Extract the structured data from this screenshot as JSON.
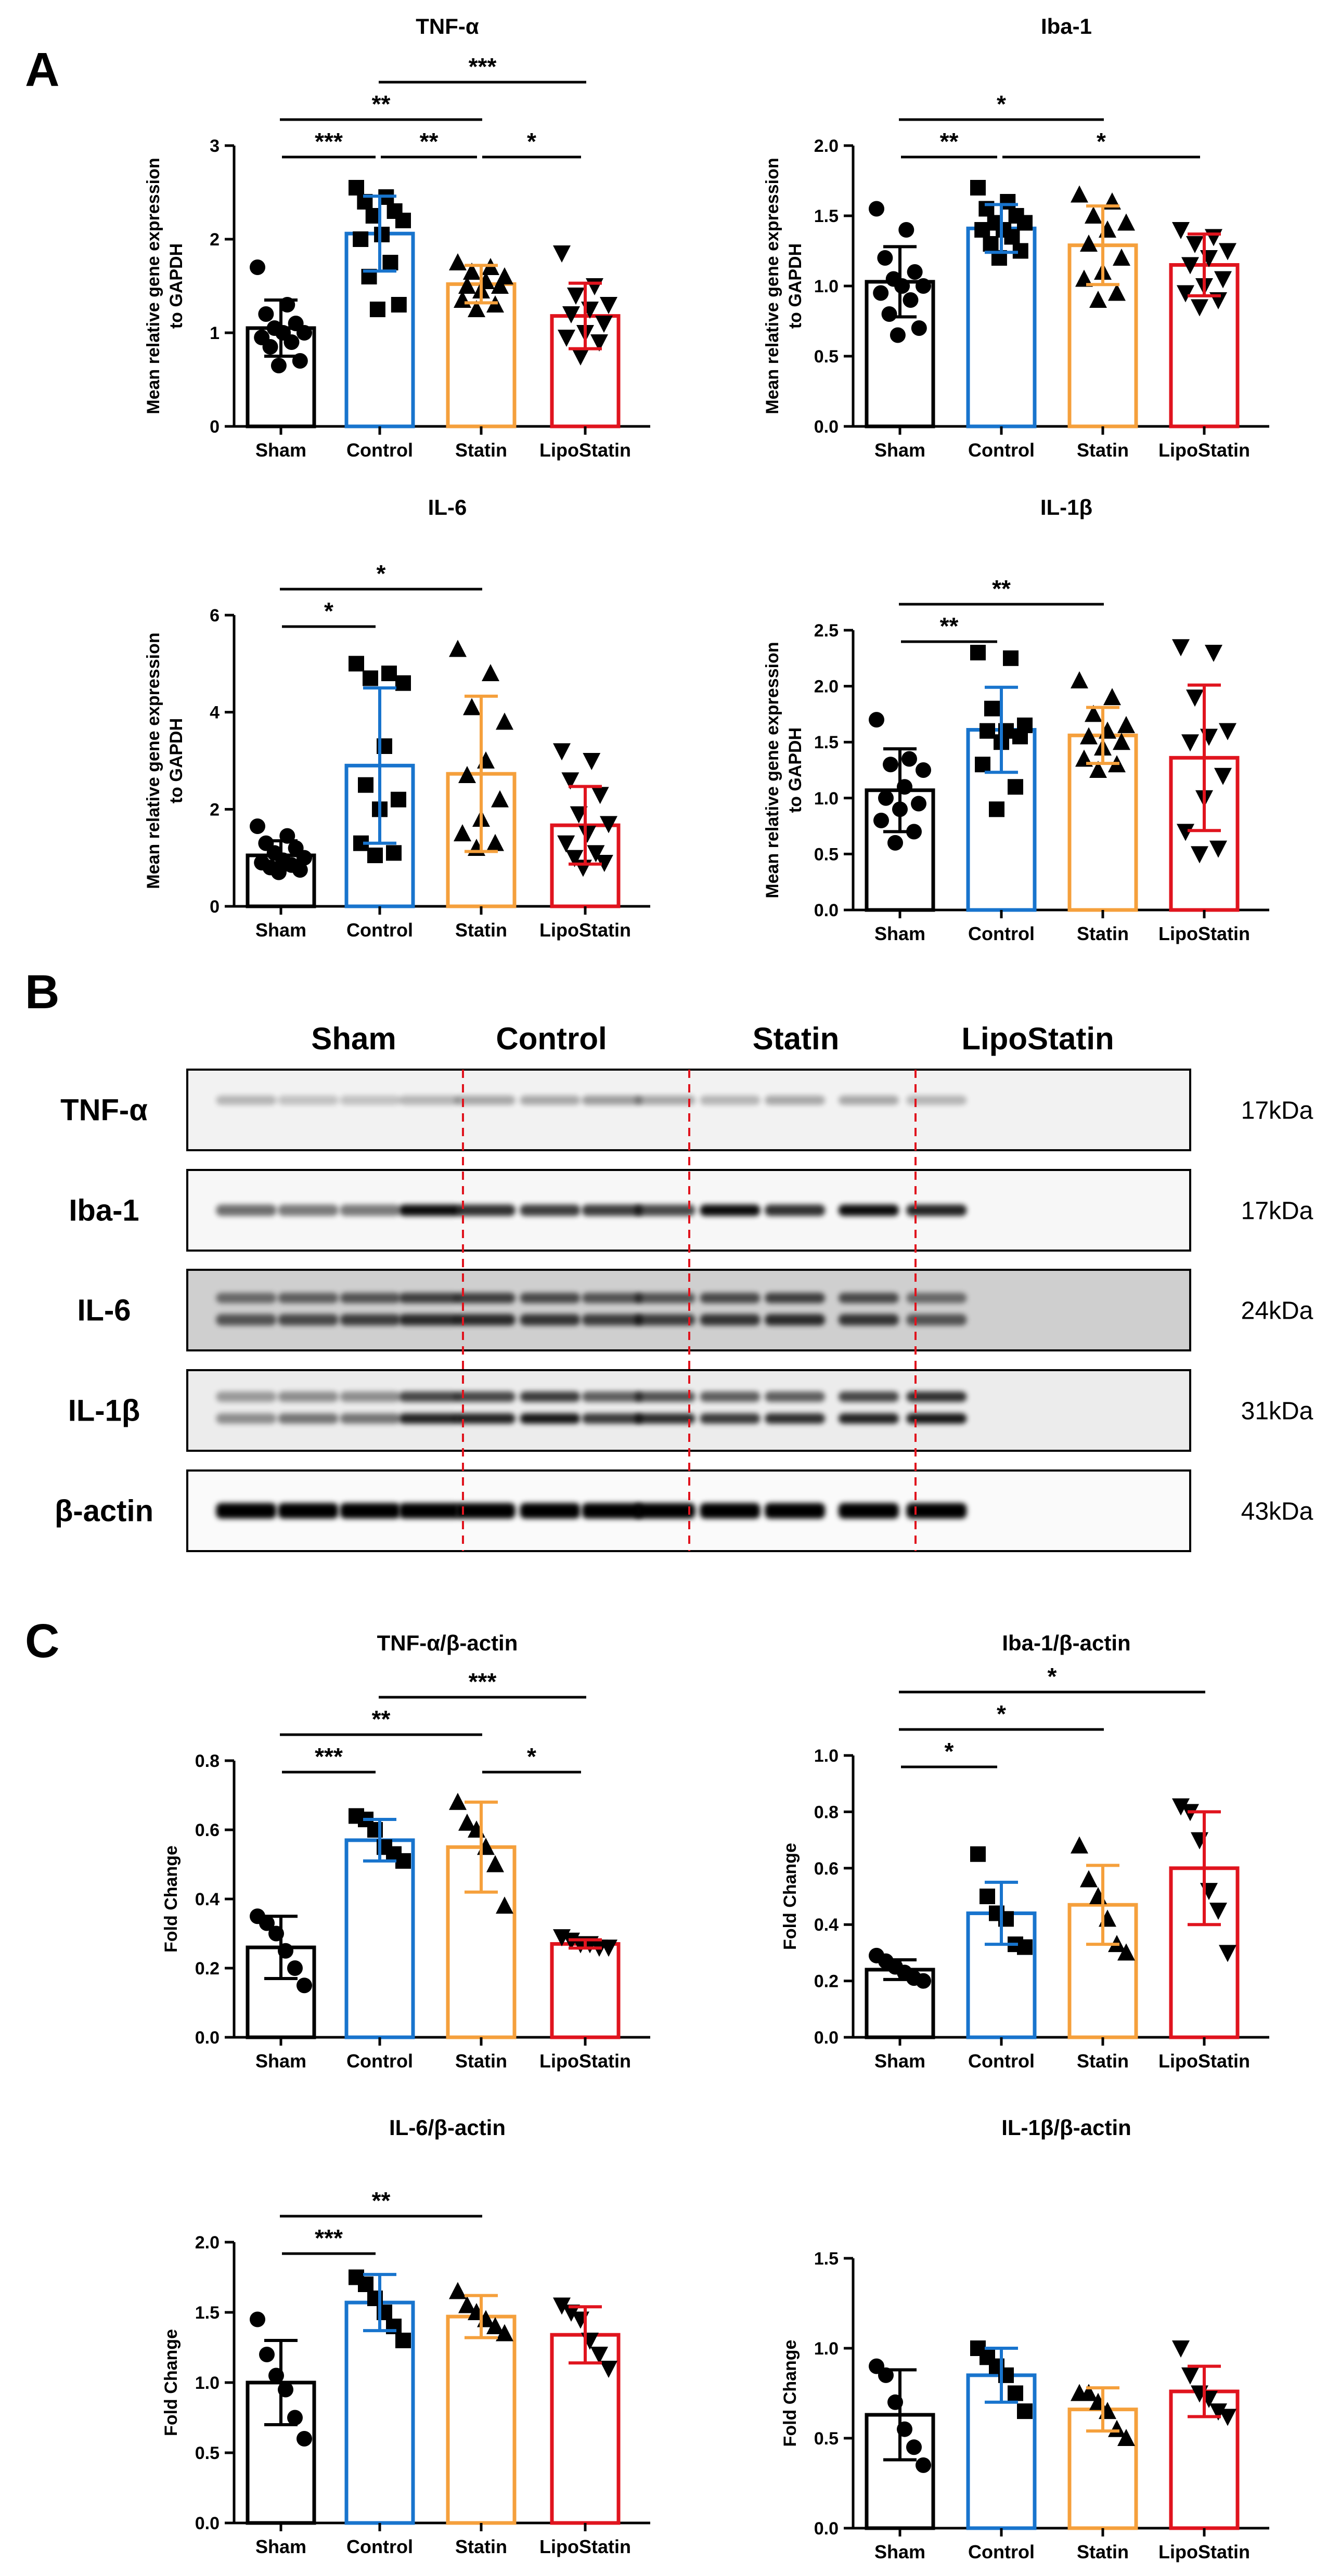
{
  "panels": {
    "a": "A",
    "b": "B",
    "c": "C"
  },
  "colors": {
    "Sham": "#000000",
    "Control": "#1874cd",
    "Statin": "#f5a03c",
    "LipoStatin": "#e0141e",
    "divider": "#e0141e"
  },
  "blot": {
    "groups": [
      "Sham",
      "Control",
      "Statin",
      "LipoStatin"
    ],
    "rows": [
      {
        "label": "TNF-α",
        "kda": "17kDa"
      },
      {
        "label": "Iba-1",
        "kda": "17kDa"
      },
      {
        "label": "IL-6",
        "kda": "24kDa"
      },
      {
        "label": "IL-1β",
        "kda": "31kDa"
      },
      {
        "label": "β-actin",
        "kda": "43kDa"
      }
    ]
  },
  "chart_data": [
    {
      "type": "bar",
      "panel": "A",
      "title": "TNF-α",
      "ylabel": [
        "Mean relative gene expression",
        "to GAPDH"
      ],
      "categories": [
        "Sham",
        "Control",
        "Statin",
        "LipoStatin"
      ],
      "ylim": [
        0,
        3
      ],
      "yticks": [
        "0",
        "1",
        "2",
        "3"
      ],
      "values": [
        1.05,
        2.06,
        1.52,
        1.18
      ],
      "errors": [
        0.3,
        0.4,
        0.2,
        0.35
      ],
      "markers": [
        "circle",
        "square",
        "triangle",
        "triangle-down"
      ],
      "points": [
        [
          1.7,
          1.3,
          1.2,
          1.1,
          1.05,
          1.0,
          1.0,
          0.95,
          0.9,
          0.85,
          0.7,
          0.65
        ],
        [
          2.55,
          2.45,
          2.4,
          2.3,
          2.25,
          2.2,
          2.05,
          2.0,
          1.75,
          1.6,
          1.3,
          1.25
        ],
        [
          1.75,
          1.7,
          1.65,
          1.6,
          1.55,
          1.5,
          1.5,
          1.45,
          1.35,
          1.3,
          1.25
        ],
        [
          1.85,
          1.5,
          1.4,
          1.3,
          1.25,
          1.2,
          1.1,
          1.0,
          0.95,
          0.9,
          0.75
        ]
      ],
      "comparisons": [
        {
          "from": 0,
          "to": 1,
          "label": "***",
          "level": 0
        },
        {
          "from": 1,
          "to": 2,
          "label": "**",
          "level": 0
        },
        {
          "from": 2,
          "to": 3,
          "label": "*",
          "level": 0
        },
        {
          "from": 0,
          "to": 2,
          "label": "**",
          "level": 1
        },
        {
          "from": 1,
          "to": 3,
          "label": "***",
          "level": 2
        }
      ]
    },
    {
      "type": "bar",
      "panel": "A",
      "title": "Iba-1",
      "ylabel": [
        "Mean relative gene expression",
        "to GAPDH"
      ],
      "categories": [
        "Sham",
        "Control",
        "Statin",
        "LipoStatin"
      ],
      "ylim": [
        0,
        2
      ],
      "yticks": [
        "0.0",
        "0.5",
        "1.0",
        "1.5",
        "2.0"
      ],
      "values": [
        1.03,
        1.41,
        1.29,
        1.15
      ],
      "errors": [
        0.25,
        0.17,
        0.28,
        0.22
      ],
      "markers": [
        "circle",
        "square",
        "triangle",
        "triangle-down"
      ],
      "points": [
        [
          1.55,
          1.4,
          1.2,
          1.1,
          1.05,
          1.0,
          1.0,
          0.95,
          0.9,
          0.8,
          0.7,
          0.65
        ],
        [
          1.7,
          1.6,
          1.55,
          1.5,
          1.45,
          1.45,
          1.4,
          1.4,
          1.35,
          1.3,
          1.25,
          1.2
        ],
        [
          1.65,
          1.6,
          1.5,
          1.45,
          1.4,
          1.3,
          1.2,
          1.1,
          1.05,
          0.95,
          0.9
        ],
        [
          1.4,
          1.35,
          1.3,
          1.25,
          1.2,
          1.15,
          1.05,
          1.0,
          0.95,
          0.9,
          0.85
        ]
      ],
      "comparisons": [
        {
          "from": 0,
          "to": 1,
          "label": "**",
          "level": 0
        },
        {
          "from": 1,
          "to": 3,
          "label": "*",
          "level": 0
        },
        {
          "from": 0,
          "to": 2,
          "label": "*",
          "level": 1
        }
      ]
    },
    {
      "type": "bar",
      "panel": "A",
      "title": "IL-6",
      "ylabel": [
        "Mean relative gene expression",
        "to GAPDH"
      ],
      "categories": [
        "Sham",
        "Control",
        "Statin",
        "LipoStatin"
      ],
      "ylim": [
        0,
        6
      ],
      "yticks": [
        "0",
        "2",
        "4",
        "6"
      ],
      "values": [
        1.05,
        2.9,
        2.73,
        1.67
      ],
      "errors": [
        0.3,
        1.6,
        1.6,
        0.8
      ],
      "markers": [
        "circle",
        "square",
        "triangle",
        "triangle-down"
      ],
      "points": [
        [
          1.65,
          1.45,
          1.3,
          1.2,
          1.1,
          1.0,
          0.95,
          0.9,
          0.85,
          0.8,
          0.75,
          0.7
        ],
        [
          5.0,
          4.8,
          4.7,
          4.6,
          3.3,
          2.5,
          2.2,
          2.0,
          1.3,
          1.1,
          1.05
        ],
        [
          5.3,
          4.8,
          4.1,
          3.8,
          3.0,
          2.7,
          2.2,
          1.8,
          1.5,
          1.3,
          1.2
        ],
        [
          3.2,
          3.0,
          2.6,
          2.3,
          1.9,
          1.7,
          1.5,
          1.3,
          1.1,
          1.0,
          0.9,
          0.8
        ]
      ],
      "comparisons": [
        {
          "from": 0,
          "to": 1,
          "label": "*",
          "level": 0
        },
        {
          "from": 0,
          "to": 2,
          "label": "*",
          "level": 1
        }
      ]
    },
    {
      "type": "bar",
      "panel": "A",
      "title": "IL-1β",
      "ylabel": [
        "Mean relative gene expression",
        "to GAPDH"
      ],
      "categories": [
        "Sham",
        "Control",
        "Statin",
        "LipoStatin"
      ],
      "ylim": [
        0,
        2.5
      ],
      "yticks": [
        "0.0",
        "0.5",
        "1.0",
        "1.5",
        "2.0",
        "2.5"
      ],
      "values": [
        1.07,
        1.61,
        1.56,
        1.36
      ],
      "errors": [
        0.37,
        0.38,
        0.25,
        0.65
      ],
      "markers": [
        "circle",
        "square",
        "triangle",
        "triangle-down"
      ],
      "points": [
        [
          1.7,
          1.35,
          1.3,
          1.25,
          1.1,
          1.0,
          0.95,
          0.9,
          0.8,
          0.7,
          0.6
        ],
        [
          2.3,
          2.25,
          1.8,
          1.65,
          1.6,
          1.6,
          1.55,
          1.5,
          1.3,
          1.1,
          0.9
        ],
        [
          2.05,
          1.9,
          1.75,
          1.65,
          1.6,
          1.55,
          1.5,
          1.45,
          1.35,
          1.3,
          1.25
        ],
        [
          2.35,
          2.3,
          1.9,
          1.6,
          1.55,
          1.5,
          1.2,
          1.0,
          0.7,
          0.55,
          0.5
        ]
      ],
      "comparisons": [
        {
          "from": 0,
          "to": 1,
          "label": "**",
          "level": 0
        },
        {
          "from": 0,
          "to": 2,
          "label": "**",
          "level": 1
        }
      ]
    },
    {
      "type": "bar",
      "panel": "C",
      "title": "TNF-α/β-actin",
      "ylabel": [
        "Fold Change"
      ],
      "categories": [
        "Sham",
        "Control",
        "Statin",
        "LipoStatin"
      ],
      "ylim": [
        0,
        0.8
      ],
      "yticks": [
        "0.0",
        "0.2",
        "0.4",
        "0.6",
        "0.8"
      ],
      "values": [
        0.26,
        0.57,
        0.55,
        0.27
      ],
      "errors": [
        0.09,
        0.06,
        0.13,
        0.012
      ],
      "markers": [
        "circle",
        "square",
        "triangle",
        "triangle-down"
      ],
      "points": [
        [
          0.35,
          0.33,
          0.3,
          0.25,
          0.2,
          0.15
        ],
        [
          0.64,
          0.63,
          0.6,
          0.55,
          0.53,
          0.51
        ],
        [
          0.68,
          0.62,
          0.6,
          0.55,
          0.5,
          0.38
        ],
        [
          0.29,
          0.28,
          0.27,
          0.27,
          0.26,
          0.26
        ]
      ],
      "comparisons": [
        {
          "from": 0,
          "to": 1,
          "label": "***",
          "level": 0
        },
        {
          "from": 2,
          "to": 3,
          "label": "*",
          "level": 0
        },
        {
          "from": 0,
          "to": 2,
          "label": "**",
          "level": 1
        },
        {
          "from": 1,
          "to": 3,
          "label": "***",
          "level": 2
        }
      ]
    },
    {
      "type": "bar",
      "panel": "C",
      "title": "Iba-1/β-actin",
      "ylabel": [
        "Fold Change"
      ],
      "categories": [
        "Sham",
        "Control",
        "Statin",
        "LipoStatin"
      ],
      "ylim": [
        0,
        1.0
      ],
      "yticks": [
        "0.0",
        "0.2",
        "0.4",
        "0.6",
        "0.8",
        "1.0"
      ],
      "values": [
        0.24,
        0.44,
        0.47,
        0.6
      ],
      "errors": [
        0.035,
        0.11,
        0.14,
        0.2
      ],
      "markers": [
        "circle",
        "square",
        "triangle",
        "triangle-down"
      ],
      "points": [
        [
          0.29,
          0.27,
          0.25,
          0.23,
          0.21,
          0.2
        ],
        [
          0.65,
          0.5,
          0.44,
          0.42,
          0.33,
          0.32
        ],
        [
          0.68,
          0.56,
          0.5,
          0.42,
          0.33,
          0.3
        ],
        [
          0.82,
          0.8,
          0.7,
          0.52,
          0.45,
          0.3
        ]
      ],
      "comparisons": [
        {
          "from": 0,
          "to": 1,
          "label": "*",
          "level": 0
        },
        {
          "from": 0,
          "to": 2,
          "label": "*",
          "level": 1
        },
        {
          "from": 0,
          "to": 3,
          "label": "*",
          "level": 2
        }
      ]
    },
    {
      "type": "bar",
      "panel": "C",
      "title": "IL-6/β-actin",
      "ylabel": [
        "Fold Change"
      ],
      "categories": [
        "Sham",
        "Control",
        "Statin",
        "LipoStatin"
      ],
      "ylim": [
        0,
        2.0
      ],
      "yticks": [
        "0.0",
        "0.5",
        "1.0",
        "1.5",
        "2.0"
      ],
      "values": [
        1.0,
        1.57,
        1.47,
        1.34
      ],
      "errors": [
        0.3,
        0.2,
        0.15,
        0.2
      ],
      "markers": [
        "circle",
        "square",
        "triangle",
        "triangle-down"
      ],
      "points": [
        [
          1.45,
          1.2,
          1.05,
          0.95,
          0.75,
          0.6
        ],
        [
          1.75,
          1.7,
          1.6,
          1.5,
          1.4,
          1.3
        ],
        [
          1.65,
          1.55,
          1.5,
          1.45,
          1.4,
          1.35
        ],
        [
          1.55,
          1.5,
          1.45,
          1.3,
          1.2,
          1.1
        ]
      ],
      "comparisons": [
        {
          "from": 0,
          "to": 1,
          "label": "***",
          "level": 0
        },
        {
          "from": 0,
          "to": 2,
          "label": "**",
          "level": 1
        }
      ]
    },
    {
      "type": "bar",
      "panel": "C",
      "title": "IL-1β/β-actin",
      "ylabel": [
        "Fold Change"
      ],
      "categories": [
        "Sham",
        "Control",
        "Statin",
        "LipoStatin"
      ],
      "ylim": [
        0,
        1.5
      ],
      "yticks": [
        "0.0",
        "0.5",
        "1.0",
        "1.5"
      ],
      "values": [
        0.63,
        0.85,
        0.66,
        0.76
      ],
      "errors": [
        0.25,
        0.15,
        0.12,
        0.14
      ],
      "markers": [
        "circle",
        "square",
        "triangle",
        "triangle-down"
      ],
      "points": [
        [
          0.9,
          0.85,
          0.7,
          0.55,
          0.45,
          0.35
        ],
        [
          1.0,
          0.95,
          0.9,
          0.85,
          0.75,
          0.65
        ],
        [
          0.75,
          0.75,
          0.7,
          0.65,
          0.55,
          0.5
        ],
        [
          1.0,
          0.85,
          0.75,
          0.72,
          0.65,
          0.62
        ]
      ],
      "comparisons": []
    }
  ]
}
